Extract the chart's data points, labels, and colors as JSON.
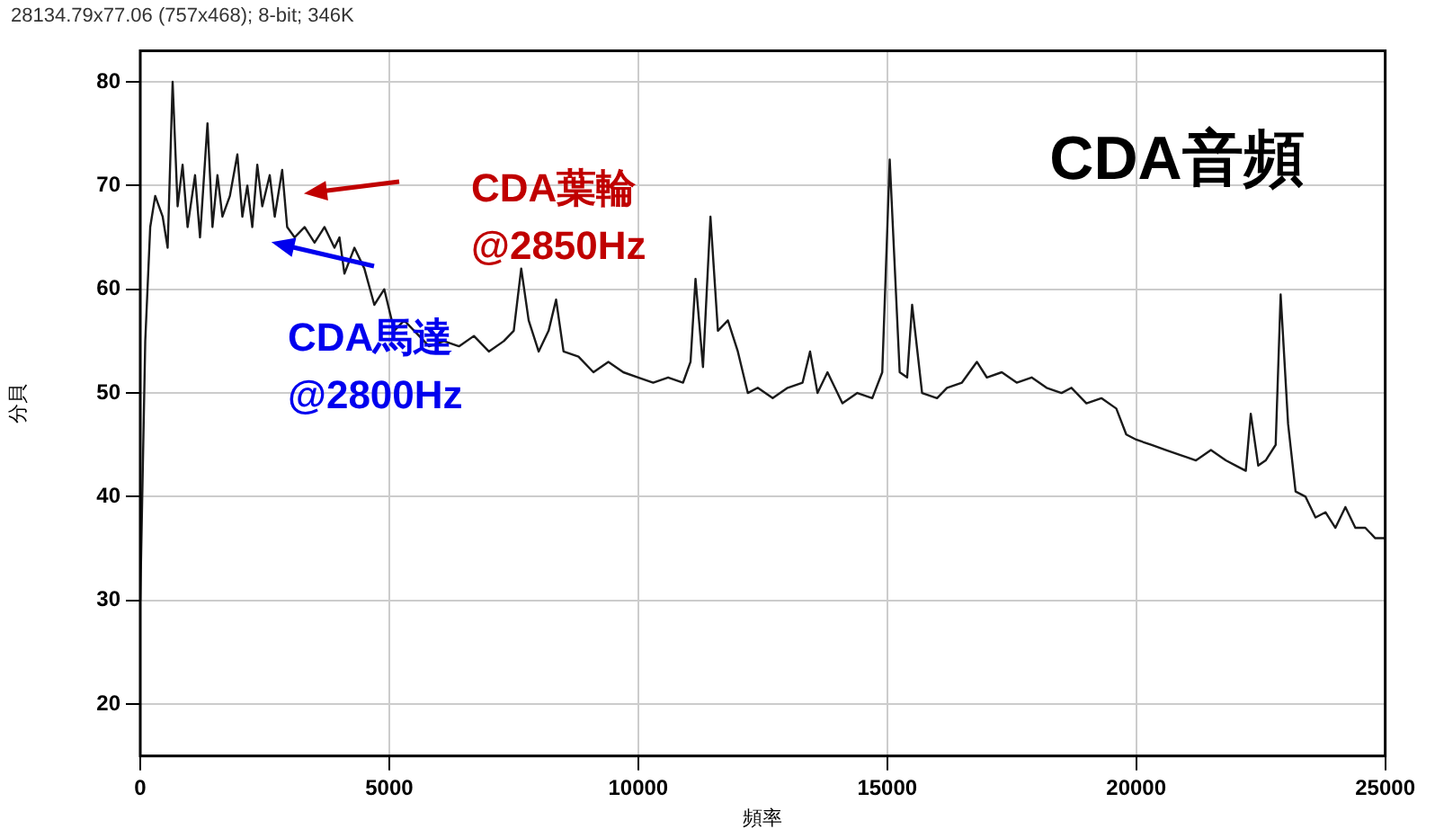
{
  "chart_data": {
    "type": "line",
    "title": "CDA音頻",
    "xlabel": "頻率",
    "ylabel": "分貝",
    "annotations": [
      "28134.79x77.06 (757x468); 8-bit; 346K",
      "CDA葉輪 @2850Hz",
      "CDA馬達 @2800Hz"
    ],
    "series": [
      {
        "color": "#1a1a1a",
        "x": [
          0,
          100,
          200,
          300,
          450,
          550,
          650,
          750,
          850,
          950,
          1100,
          1200,
          1350,
          1450,
          1550,
          1650,
          1800,
          1950,
          2050,
          2150,
          2250,
          2350,
          2450,
          2600,
          2700,
          2850,
          2950,
          3100,
          3300,
          3500,
          3700,
          3900,
          4000,
          4100,
          4300,
          4500,
          4700,
          4900,
          5100,
          5300,
          5500,
          5800,
          6100,
          6400,
          6700,
          7000,
          7300,
          7500,
          7650,
          7800,
          8000,
          8200,
          8350,
          8500,
          8800,
          9100,
          9400,
          9700,
          10000,
          10300,
          10600,
          10900,
          11050,
          11150,
          11300,
          11450,
          11600,
          11800,
          12000,
          12200,
          12400,
          12700,
          13000,
          13300,
          13450,
          13600,
          13800,
          14100,
          14400,
          14700,
          14900,
          15050,
          15250,
          15400,
          15500,
          15700,
          16000,
          16200,
          16500,
          16800,
          17000,
          17300,
          17600,
          17900,
          18200,
          18500,
          18700,
          19000,
          19300,
          19600,
          19800,
          20000,
          20300,
          20600,
          20900,
          21200,
          21500,
          21800,
          22000,
          22200,
          22300,
          22450,
          22600,
          22800,
          22900,
          23050,
          23200,
          23400,
          23600,
          23800,
          24000,
          24200,
          24400,
          24600,
          24800,
          25000
        ],
        "values": [
          30,
          55,
          66,
          69,
          67,
          64,
          80,
          68,
          72,
          66,
          71,
          65,
          76,
          66,
          71,
          67,
          69,
          73,
          67,
          70,
          66,
          72,
          68,
          71,
          67,
          71.5,
          66,
          65,
          66,
          64.5,
          66,
          64,
          65,
          61.5,
          64,
          62,
          58.5,
          60,
          56,
          57,
          56,
          54.5,
          55,
          54.5,
          55.5,
          54,
          55,
          56,
          62,
          57,
          54,
          56,
          59,
          54,
          53.5,
          52,
          53,
          52,
          51.5,
          51,
          51.5,
          51,
          53,
          61,
          52.5,
          67,
          56,
          57,
          54,
          50,
          50.5,
          49.5,
          50.5,
          51,
          54,
          50,
          52,
          49,
          50,
          49.5,
          52,
          72.5,
          52,
          51.5,
          58.5,
          50,
          49.5,
          50.5,
          51,
          53,
          51.5,
          52,
          51,
          51.5,
          50.5,
          50,
          50.5,
          49,
          49.5,
          48.5,
          46,
          45.5,
          45,
          44.5,
          44,
          43.5,
          44.5,
          43.5,
          43,
          42.5,
          48,
          43,
          43.5,
          45,
          59.5,
          47,
          40.5,
          40,
          38,
          38.5,
          37,
          39,
          37,
          37,
          36,
          36
        ]
      }
    ],
    "xlim": [
      0,
      25000
    ],
    "xticks": [
      0,
      5000,
      10000,
      15000,
      20000,
      25000
    ],
    "ylim": [
      15,
      83
    ],
    "yticks": [
      20,
      30,
      40,
      50,
      60,
      70,
      80
    ],
    "grid": true,
    "legend": false,
    "marker": "none",
    "line_style": "solid"
  }
}
